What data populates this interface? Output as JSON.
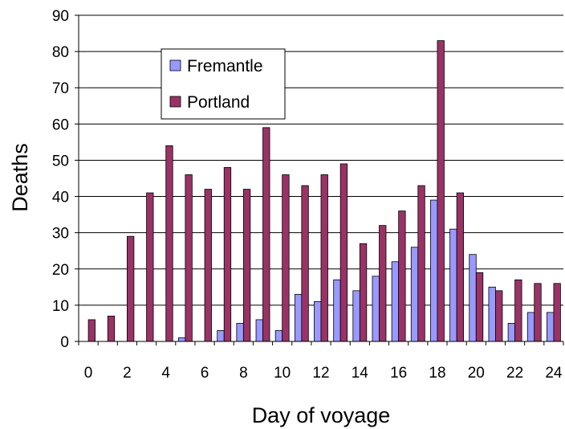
{
  "chart_data": {
    "type": "bar",
    "xlabel": "Day of voyage",
    "ylabel": "Deaths",
    "ylim": [
      0,
      90
    ],
    "y_ticks": [
      0,
      10,
      20,
      30,
      40,
      50,
      60,
      70,
      80,
      90
    ],
    "categories": [
      "0",
      "1",
      "2",
      "3",
      "4",
      "5",
      "6",
      "7",
      "8",
      "9",
      "10",
      "11",
      "12",
      "13",
      "14",
      "15",
      "16",
      "17",
      "18",
      "19",
      "20",
      "21",
      "22",
      "23",
      "24"
    ],
    "x_tick_labels": [
      "0",
      "2",
      "4",
      "6",
      "8",
      "10",
      "12",
      "14",
      "16",
      "18",
      "20",
      "22",
      "24"
    ],
    "series": [
      {
        "name": "Fremantle",
        "color": "#9999ff",
        "values": [
          0,
          0,
          0,
          0,
          0,
          1,
          0,
          3,
          5,
          6,
          3,
          13,
          11,
          17,
          14,
          18,
          22,
          26,
          39,
          31,
          24,
          15,
          5,
          8,
          8
        ]
      },
      {
        "name": "Portland",
        "color": "#993366",
        "values": [
          6,
          7,
          29,
          41,
          54,
          46,
          42,
          48,
          42,
          59,
          46,
          43,
          46,
          49,
          27,
          32,
          36,
          43,
          83,
          41,
          19,
          14,
          17,
          16,
          16
        ]
      }
    ],
    "legend_position": "upper-left inside plot",
    "grid": "horizontal"
  }
}
